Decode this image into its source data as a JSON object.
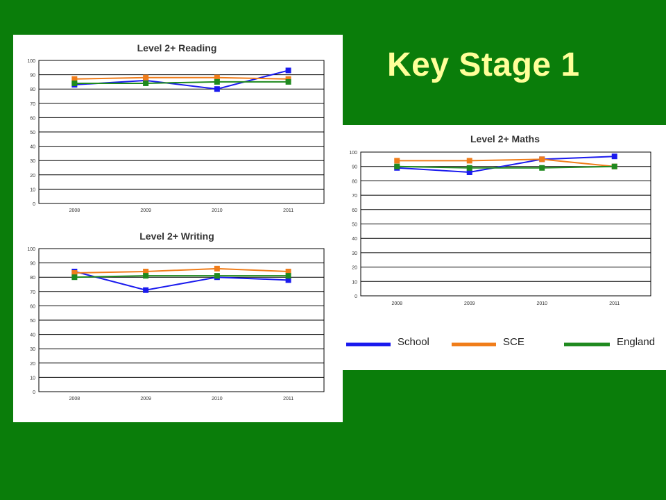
{
  "slide": {
    "title": "Key Stage 1"
  },
  "legend": [
    {
      "name": "School",
      "color": "#1a1aee"
    },
    {
      "name": "SCE",
      "color": "#f07d1a"
    },
    {
      "name": "England",
      "color": "#1f8a1f"
    }
  ],
  "chart_data": [
    {
      "type": "line",
      "title": "Level 2+ Reading",
      "categories": [
        "2008",
        "2009",
        "2010",
        "2011"
      ],
      "ylim": [
        0,
        100
      ],
      "yticks": [
        "0",
        "10",
        "20",
        "30",
        "40",
        "50",
        "60",
        "70",
        "80",
        "90",
        "100"
      ],
      "grid": true,
      "series": [
        {
          "name": "School",
          "color": "#1a1aee",
          "values": [
            83,
            86,
            80,
            93
          ]
        },
        {
          "name": "SCE",
          "color": "#f07d1a",
          "values": [
            87,
            88,
            88,
            87
          ]
        },
        {
          "name": "England",
          "color": "#1f8a1f",
          "values": [
            84,
            84,
            85,
            85
          ]
        }
      ]
    },
    {
      "type": "line",
      "title": "Level 2+ Writing",
      "categories": [
        "2008",
        "2009",
        "2010",
        "2011"
      ],
      "ylim": [
        0,
        100
      ],
      "yticks": [
        "0",
        "10",
        "20",
        "30",
        "40",
        "50",
        "60",
        "70",
        "80",
        "90",
        "100"
      ],
      "grid": true,
      "series": [
        {
          "name": "School",
          "color": "#1a1aee",
          "values": [
            84,
            71,
            80,
            78
          ]
        },
        {
          "name": "SCE",
          "color": "#f07d1a",
          "values": [
            83,
            84,
            86,
            84
          ]
        },
        {
          "name": "England",
          "color": "#1f8a1f",
          "values": [
            80,
            81,
            81,
            81
          ]
        }
      ]
    },
    {
      "type": "line",
      "title": "Level 2+ Maths",
      "categories": [
        "2008",
        "2009",
        "2010",
        "2011"
      ],
      "ylim": [
        0,
        100
      ],
      "yticks": [
        "0",
        "10",
        "20",
        "30",
        "40",
        "50",
        "60",
        "70",
        "80",
        "90",
        "100"
      ],
      "grid": true,
      "series": [
        {
          "name": "School",
          "color": "#1a1aee",
          "values": [
            89,
            86,
            95,
            97
          ]
        },
        {
          "name": "SCE",
          "color": "#f07d1a",
          "values": [
            94,
            94,
            95,
            90
          ]
        },
        {
          "name": "England",
          "color": "#1f8a1f",
          "values": [
            90,
            89,
            89,
            90
          ]
        }
      ]
    }
  ]
}
